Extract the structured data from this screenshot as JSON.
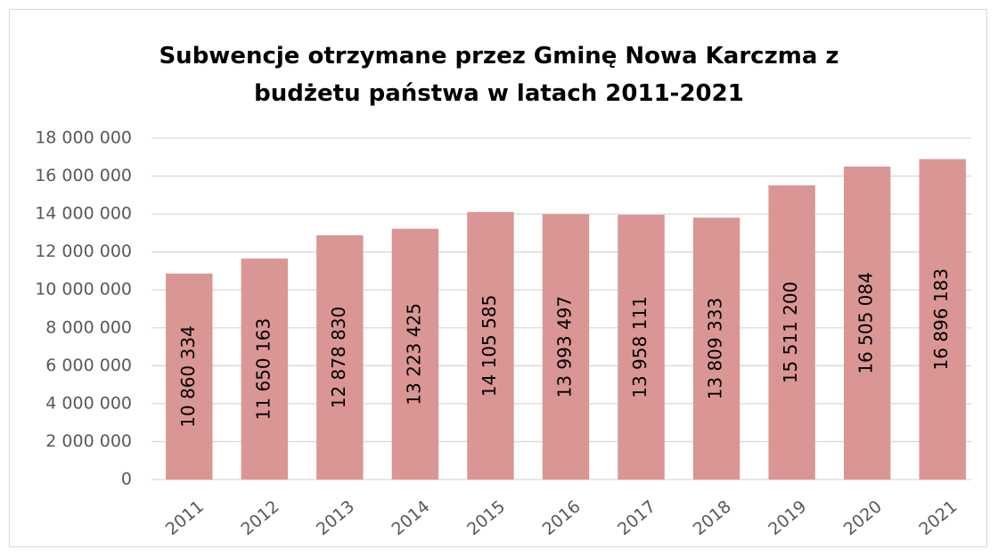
{
  "chart_data": {
    "type": "bar",
    "title": "Subwencje otrzymane przez Gminę Nowa Karczma z budżetu państwa w latach 2011-2021",
    "categories": [
      "2011",
      "2012",
      "2013",
      "2014",
      "2015",
      "2016",
      "2017",
      "2018",
      "2019",
      "2020",
      "2021"
    ],
    "values": [
      10860334,
      11650163,
      12878830,
      13223425,
      14105585,
      13993497,
      13958111,
      13809333,
      15511200,
      16505084,
      16896183
    ],
    "value_labels": [
      "10 860 334",
      "11 650 163",
      "12 878 830",
      "13 223 425",
      "14 105 585",
      "13 993 497",
      "13 958 111",
      "13 809 333",
      "15 511 200",
      "16 505 084",
      "16 896 183"
    ],
    "color": "#da9694",
    "ylim": [
      0,
      18000000
    ],
    "yticks": [
      0,
      {
        "value": 2000000,
        "label": "2 000 000"
      },
      {
        "value": 4000000,
        "label": "4 000 000"
      },
      {
        "value": 6000000,
        "label": "6 000 000"
      },
      {
        "value": 8000000,
        "label": "8 000 000"
      },
      {
        "value": 10000000,
        "label": "10 000 000"
      },
      {
        "value": 12000000,
        "label": "12 000 000"
      },
      {
        "value": 14000000,
        "label": "14 000 000"
      },
      {
        "value": 16000000,
        "label": "16 000 000"
      },
      {
        "value": 18000000,
        "label": "18 000 000"
      }
    ],
    "grid": true
  }
}
